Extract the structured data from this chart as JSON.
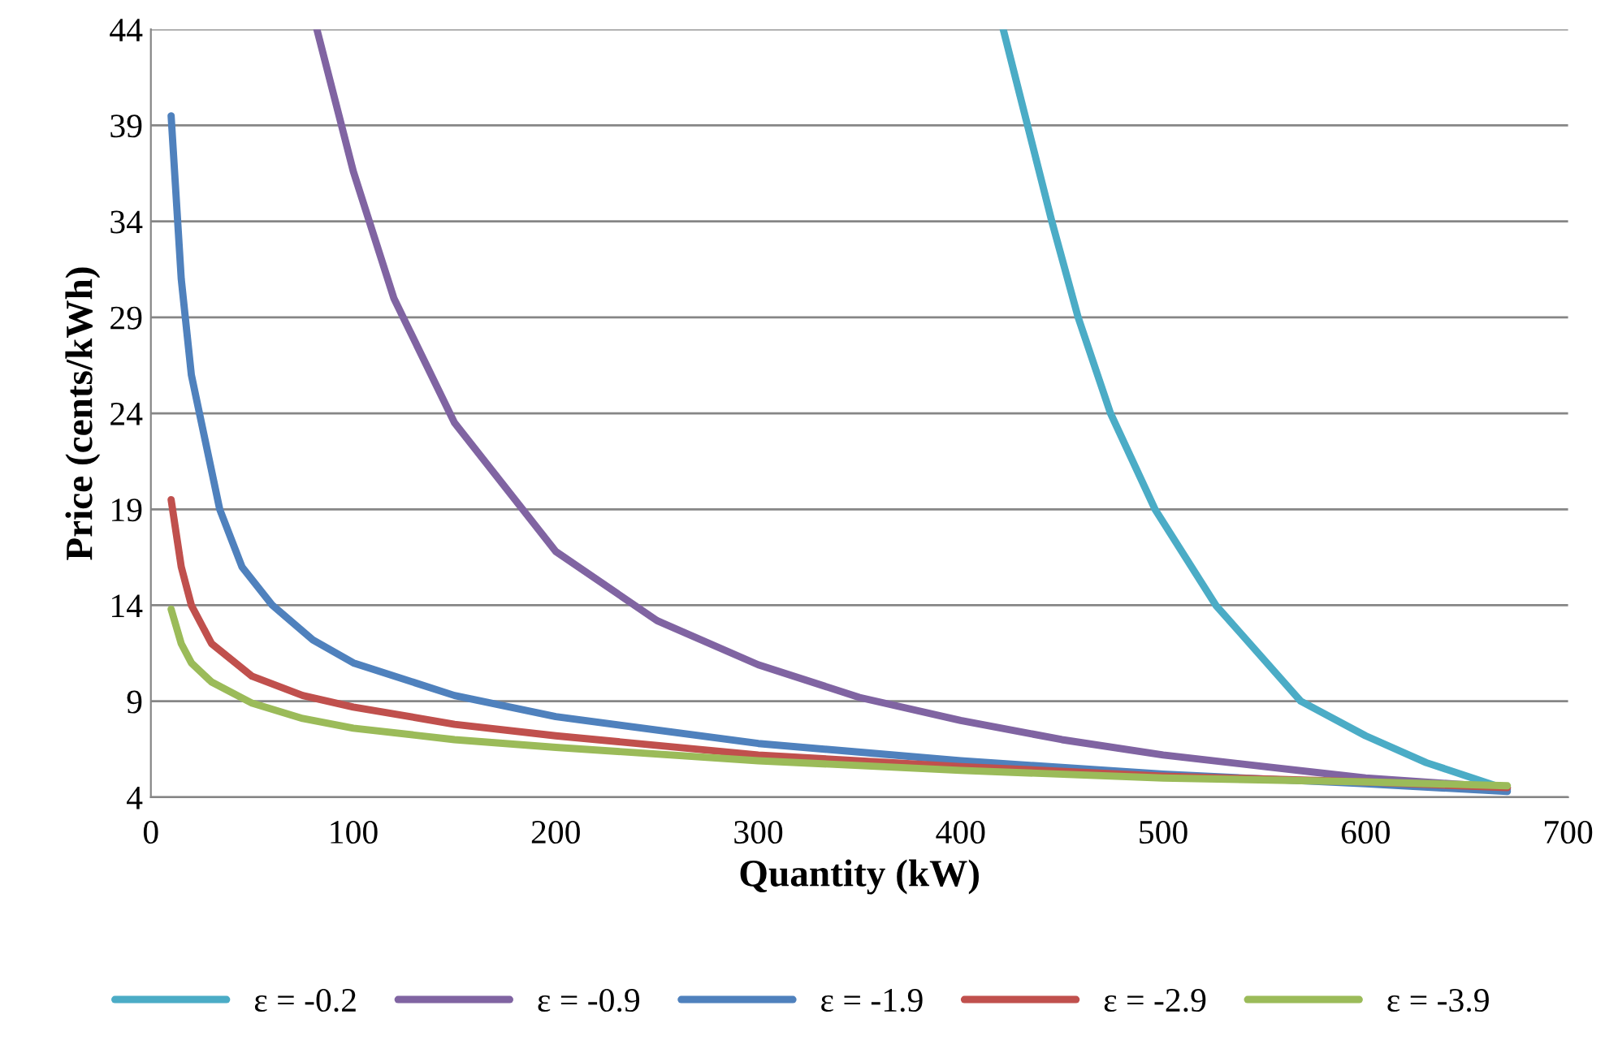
{
  "chart_data": {
    "type": "line",
    "xlabel": "Quantity (kW)",
    "ylabel": "Price (cents/kWh)",
    "xlim": [
      0,
      700
    ],
    "xticks": [
      0,
      100,
      200,
      300,
      400,
      500,
      600,
      700
    ],
    "ylim": [
      4,
      44
    ],
    "yticks": [
      4,
      9,
      14,
      19,
      24,
      29,
      34,
      39,
      44
    ],
    "grid": "y",
    "legend": "bottom",
    "marker": "none",
    "line_style": "solid",
    "series": [
      {
        "name": "ε = -0.2",
        "color": "#4bacc6",
        "x": [
          421,
          445,
          458,
          474,
          496,
          526,
          568,
          600,
          630,
          670
        ],
        "values": [
          44,
          34,
          29,
          24,
          19,
          14,
          9,
          7.2,
          5.8,
          4.4
        ]
      },
      {
        "name": "ε = -0.9",
        "color": "#8064a2",
        "x": [
          82,
          100,
          120,
          150,
          200,
          250,
          300,
          350,
          400,
          450,
          500,
          550,
          600,
          670
        ],
        "values": [
          44,
          36.6,
          30,
          23.5,
          16.8,
          13.2,
          10.9,
          9.2,
          8,
          7,
          6.2,
          5.6,
          5,
          4.5
        ]
      },
      {
        "name": "ε = -1.9",
        "color": "#4f81bd",
        "x": [
          10,
          15,
          20,
          34,
          45,
          60,
          80,
          100,
          150,
          200,
          300,
          400,
          500,
          600,
          670
        ],
        "values": [
          39.5,
          31,
          26,
          19,
          16,
          14,
          12.2,
          11,
          9.3,
          8.2,
          6.8,
          5.9,
          5.2,
          4.7,
          4.3
        ]
      },
      {
        "name": "ε = -2.9",
        "color": "#c0504d",
        "x": [
          10,
          15,
          20,
          30,
          50,
          75,
          100,
          150,
          200,
          300,
          400,
          500,
          600,
          670
        ],
        "values": [
          19.5,
          16,
          14,
          12,
          10.3,
          9.3,
          8.7,
          7.8,
          7.2,
          6.2,
          5.6,
          5.1,
          4.8,
          4.5
        ]
      },
      {
        "name": "ε = -3.9",
        "color": "#9bbb59",
        "x": [
          10,
          15,
          20,
          30,
          50,
          75,
          100,
          150,
          200,
          300,
          400,
          500,
          600,
          670
        ],
        "values": [
          13.8,
          12,
          11,
          10,
          8.9,
          8.1,
          7.6,
          7,
          6.6,
          5.9,
          5.4,
          5,
          4.8,
          4.6
        ]
      }
    ]
  }
}
